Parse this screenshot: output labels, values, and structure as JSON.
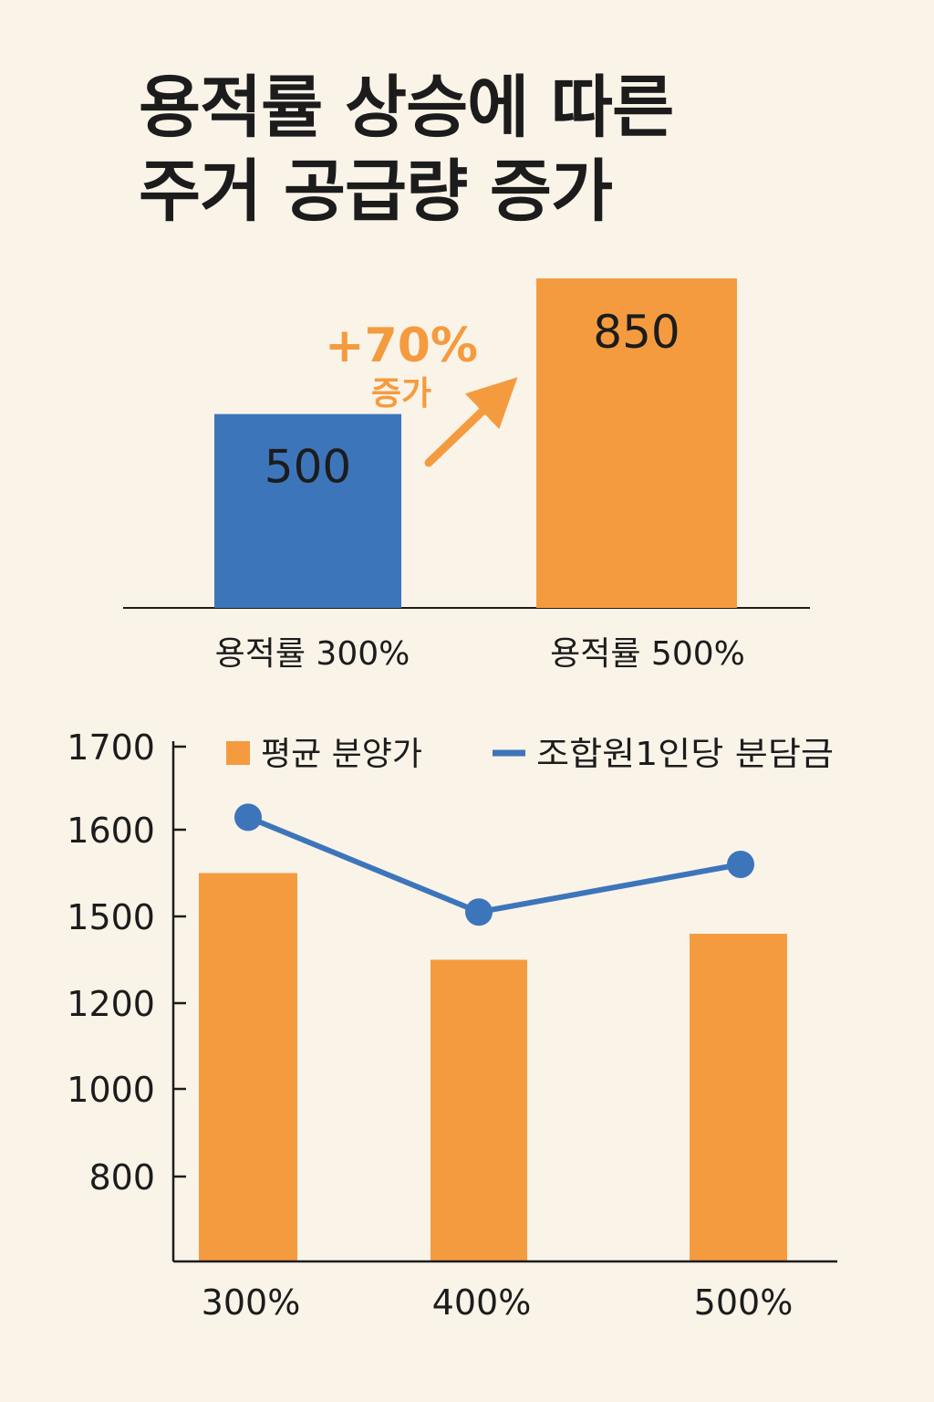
{
  "title_lines": [
    "용적률 상승에 따른",
    "주거 공급량 증가"
  ],
  "colors": {
    "blue": "#3D75BA",
    "orange": "#F59B3F",
    "background": "#FAF3E8",
    "text": "#1c1c1c"
  },
  "chart_data": [
    {
      "type": "bar",
      "categories": [
        "용적률 300%",
        "용적률 500%"
      ],
      "values": [
        500,
        850
      ],
      "data_labels": [
        "500",
        "850"
      ],
      "bar_colors": [
        "#3D75BA",
        "#F59B3F"
      ],
      "annotation": {
        "value": "+70%",
        "text": "증가",
        "arrow": "up-right"
      },
      "ylim": [
        0,
        850
      ],
      "grid": false
    },
    {
      "type": "bar+line",
      "categories": [
        "300%",
        "400%",
        "500%"
      ],
      "yticks": [
        "1700",
        "1600",
        "1500",
        "1200",
        "1000",
        "800"
      ],
      "series": [
        {
          "name": "평균 분양가",
          "type": "bar",
          "color": "#F59B3F",
          "values": [
            1550,
            1350,
            1440
          ]
        },
        {
          "name": "조합원1인당 분담금",
          "type": "line",
          "color": "#3D75BA",
          "values": [
            1615,
            1505,
            1560
          ]
        }
      ],
      "legend": "top",
      "grid": false
    }
  ]
}
